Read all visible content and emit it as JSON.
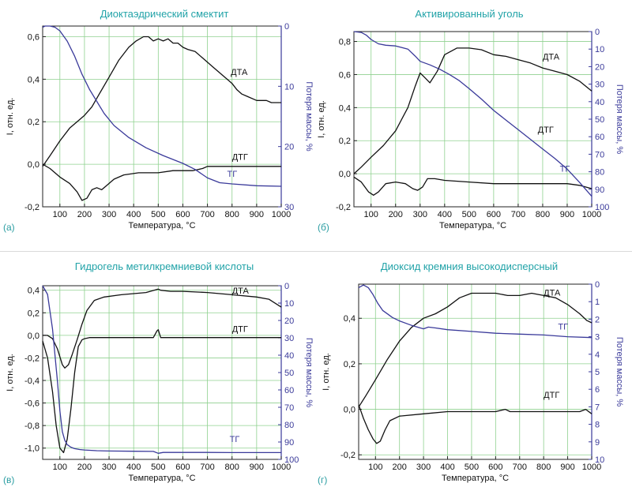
{
  "figure": {
    "panel_labels": [
      "(а)",
      "(б)",
      "(в)",
      "(г)"
    ]
  },
  "colors": {
    "title": "#22a3a8",
    "grid": "#8fd18f",
    "dta": "#111111",
    "dtg": "#111111",
    "tg": "#3a3a9a",
    "axis_right": "#3a3a9a"
  },
  "chart_data": [
    {
      "type": "line",
      "panel_label": "(а)",
      "title": "Диоктаэдрический смектит",
      "xlabel": "Температура, °С",
      "ylabel": "I, отн. ед.",
      "y2label": "Потеря массы, %",
      "xlim": [
        30,
        1000
      ],
      "ylim": [
        -0.2,
        0.65
      ],
      "y2lim": [
        0,
        30
      ],
      "x_ticks": [
        100,
        200,
        300,
        400,
        500,
        600,
        700,
        800,
        900,
        1000
      ],
      "y_ticks": [
        -0.2,
        0.0,
        0.2,
        0.4,
        0.6
      ],
      "y_tick_labels": [
        "-0,2",
        "0,0",
        "0,2",
        "0,4",
        "0,6"
      ],
      "y2_ticks": [
        0,
        10,
        20,
        30
      ],
      "y2_tick_labels": [
        "0",
        "10",
        "20",
        "30"
      ],
      "series": [
        {
          "name": "ДТА",
          "axis": "left",
          "label_at": [
            795,
            0.42
          ],
          "x": [
            30,
            60,
            100,
            140,
            170,
            200,
            230,
            260,
            300,
            340,
            380,
            410,
            440,
            460,
            480,
            500,
            520,
            540,
            560,
            580,
            600,
            620,
            650,
            680,
            720,
            760,
            790,
            800,
            820,
            840,
            860,
            900,
            940,
            960,
            1000
          ],
          "y": [
            -0.01,
            0.04,
            0.11,
            0.17,
            0.2,
            0.23,
            0.27,
            0.33,
            0.41,
            0.49,
            0.55,
            0.58,
            0.6,
            0.6,
            0.58,
            0.59,
            0.58,
            0.59,
            0.57,
            0.57,
            0.55,
            0.54,
            0.53,
            0.5,
            0.46,
            0.42,
            0.39,
            0.38,
            0.35,
            0.33,
            0.32,
            0.3,
            0.3,
            0.29,
            0.29
          ]
        },
        {
          "name": "ДТГ",
          "axis": "left",
          "label_at": [
            800,
            0.02
          ],
          "x": [
            30,
            60,
            100,
            140,
            170,
            190,
            210,
            230,
            250,
            270,
            290,
            320,
            360,
            420,
            500,
            560,
            600,
            640,
            680,
            700,
            750,
            800,
            900,
            1000
          ],
          "y": [
            0.0,
            -0.02,
            -0.06,
            -0.09,
            -0.13,
            -0.17,
            -0.16,
            -0.12,
            -0.11,
            -0.12,
            -0.1,
            -0.07,
            -0.05,
            -0.04,
            -0.04,
            -0.03,
            -0.03,
            -0.03,
            -0.02,
            -0.01,
            -0.01,
            -0.01,
            -0.01,
            -0.01
          ]
        },
        {
          "name": "ТГ",
          "axis": "right",
          "label_at": [
            780,
            25
          ],
          "x": [
            30,
            40,
            60,
            80,
            100,
            130,
            160,
            190,
            220,
            250,
            280,
            320,
            380,
            450,
            520,
            600,
            650,
            700,
            750,
            800,
            900,
            1000
          ],
          "y": [
            0.2,
            0.0,
            0.0,
            0.2,
            0.8,
            2.5,
            5.0,
            8.0,
            10.5,
            12.5,
            14.5,
            16.5,
            18.5,
            20.2,
            21.5,
            22.8,
            23.8,
            25.2,
            26.0,
            26.2,
            26.5,
            26.6
          ]
        }
      ]
    },
    {
      "type": "line",
      "panel_label": "(б)",
      "title": "Активированный уголь",
      "xlabel": "Температура, °С",
      "ylabel": "I, отн. ед.",
      "y2label": "Потеря массы, %",
      "xlim": [
        30,
        1000
      ],
      "ylim": [
        -0.2,
        0.86
      ],
      "y2lim": [
        0,
        100
      ],
      "x_ticks": [
        100,
        200,
        300,
        400,
        500,
        600,
        700,
        800,
        900,
        1000
      ],
      "y_ticks": [
        -0.2,
        0.0,
        0.2,
        0.4,
        0.6,
        0.8
      ],
      "y_tick_labels": [
        "-0,2",
        "0,0",
        "0,2",
        "0,4",
        "0,6",
        "0,8"
      ],
      "y2_ticks": [
        0,
        10,
        20,
        30,
        40,
        50,
        60,
        70,
        80,
        90,
        100
      ],
      "y2_tick_labels": [
        "0",
        "10",
        "20",
        "30",
        "40",
        "50",
        "60",
        "70",
        "80",
        "90",
        "100"
      ],
      "series": [
        {
          "name": "ДТА",
          "axis": "left",
          "label_at": [
            800,
            0.69
          ],
          "x": [
            30,
            60,
            100,
            150,
            200,
            250,
            280,
            300,
            320,
            340,
            370,
            400,
            450,
            500,
            550,
            600,
            650,
            700,
            750,
            800,
            850,
            900,
            950,
            1000
          ],
          "y": [
            0.0,
            0.04,
            0.1,
            0.17,
            0.26,
            0.4,
            0.53,
            0.61,
            0.58,
            0.55,
            0.62,
            0.72,
            0.76,
            0.76,
            0.75,
            0.72,
            0.71,
            0.69,
            0.67,
            0.64,
            0.62,
            0.6,
            0.56,
            0.5
          ]
        },
        {
          "name": "ДТГ",
          "axis": "left",
          "label_at": [
            780,
            0.25
          ],
          "x": [
            30,
            60,
            90,
            110,
            130,
            160,
            200,
            240,
            270,
            290,
            310,
            330,
            360,
            400,
            500,
            600,
            700,
            800,
            900,
            950,
            1000
          ],
          "y": [
            -0.02,
            -0.05,
            -0.11,
            -0.13,
            -0.11,
            -0.06,
            -0.05,
            -0.06,
            -0.09,
            -0.1,
            -0.08,
            -0.03,
            -0.03,
            -0.04,
            -0.05,
            -0.06,
            -0.06,
            -0.06,
            -0.06,
            -0.07,
            -0.09
          ]
        },
        {
          "name": "ТГ",
          "axis": "right",
          "label_at": [
            870,
            80
          ],
          "x": [
            30,
            60,
            80,
            100,
            130,
            160,
            200,
            250,
            280,
            300,
            340,
            380,
            420,
            460,
            500,
            550,
            600,
            650,
            700,
            750,
            800,
            850,
            900,
            950,
            1000
          ],
          "y": [
            0.0,
            0.5,
            2.0,
            4.5,
            7.0,
            7.8,
            8.2,
            10.0,
            14.0,
            17.0,
            19.0,
            21.5,
            24.5,
            28.0,
            32.5,
            38.5,
            45.0,
            50.5,
            56.0,
            61.5,
            67.0,
            72.5,
            78.5,
            86.0,
            94.0
          ]
        }
      ]
    },
    {
      "type": "line",
      "panel_label": "(в)",
      "title": "Гидрогель метилкремниевой кислоты",
      "xlabel": "Температура, °С",
      "ylabel": "I, отн. ед.",
      "y2label": "Потеря массы, %",
      "xlim": [
        30,
        1000
      ],
      "ylim": [
        -1.1,
        0.44
      ],
      "y2lim": [
        0,
        100
      ],
      "x_ticks": [
        100,
        200,
        300,
        400,
        500,
        600,
        700,
        800,
        900,
        1000
      ],
      "y_ticks": [
        -1.0,
        -0.8,
        -0.6,
        -0.4,
        -0.2,
        0.0,
        0.2,
        0.4
      ],
      "y_tick_labels": [
        "-1,0",
        "-0,8",
        "-0,6",
        "-0,4",
        "-0,2",
        "0,0",
        "0,2",
        "0,4"
      ],
      "y2_ticks": [
        0,
        10,
        20,
        30,
        40,
        50,
        60,
        70,
        80,
        90,
        100
      ],
      "y2_tick_labels": [
        "0",
        "10",
        "20",
        "30",
        "40",
        "50",
        "60",
        "70",
        "80",
        "90",
        "100"
      ],
      "series": [
        {
          "name": "ДТА",
          "axis": "left",
          "label_at": [
            800,
            0.37
          ],
          "x": [
            30,
            50,
            70,
            90,
            100,
            110,
            120,
            135,
            150,
            170,
            190,
            210,
            240,
            280,
            350,
            450,
            500,
            510,
            550,
            600,
            700,
            800,
            900,
            950,
            1000
          ],
          "y": [
            0.0,
            0.0,
            -0.03,
            -0.12,
            -0.19,
            -0.26,
            -0.29,
            -0.26,
            -0.17,
            -0.04,
            0.1,
            0.22,
            0.31,
            0.34,
            0.36,
            0.38,
            0.41,
            0.4,
            0.39,
            0.39,
            0.38,
            0.36,
            0.34,
            0.32,
            0.25
          ]
        },
        {
          "name": "ДТГ",
          "axis": "left",
          "label_at": [
            800,
            0.03
          ],
          "x": [
            30,
            50,
            70,
            85,
            100,
            115,
            130,
            145,
            160,
            175,
            190,
            200,
            220,
            300,
            400,
            480,
            495,
            500,
            510,
            600,
            700,
            800,
            900,
            1000
          ],
          "y": [
            -0.05,
            -0.2,
            -0.5,
            -0.8,
            -1.0,
            -1.04,
            -0.92,
            -0.65,
            -0.33,
            -0.1,
            -0.04,
            -0.03,
            -0.02,
            -0.02,
            -0.02,
            -0.02,
            0.04,
            0.05,
            -0.02,
            -0.02,
            -0.02,
            -0.02,
            -0.02,
            -0.02
          ]
        },
        {
          "name": "ТГ",
          "axis": "right",
          "label_at": [
            790,
            90
          ],
          "x": [
            30,
            50,
            70,
            90,
            100,
            110,
            120,
            130,
            145,
            160,
            180,
            200,
            250,
            300,
            400,
            480,
            500,
            520,
            600,
            700,
            800,
            900,
            1000
          ],
          "y": [
            0.0,
            5.0,
            25.0,
            55.0,
            72.0,
            84.0,
            89.0,
            91.5,
            93.0,
            93.8,
            94.3,
            94.6,
            95.0,
            95.2,
            95.3,
            95.4,
            96.5,
            96.0,
            96.0,
            96.0,
            96.1,
            96.1,
            96.1
          ]
        }
      ]
    },
    {
      "type": "line",
      "panel_label": "(г)",
      "title": "Диоксид кремния высокодисперсный",
      "xlabel": "Температура, °С",
      "ylabel": "I, отн. ед.",
      "y2label": "Потеря массы, %",
      "xlim": [
        30,
        1000
      ],
      "ylim": [
        -0.22,
        0.55
      ],
      "y2lim": [
        0,
        10
      ],
      "x_ticks": [
        100,
        200,
        300,
        400,
        500,
        600,
        700,
        800,
        900,
        1000
      ],
      "y_ticks": [
        -0.2,
        0.0,
        0.2,
        0.4
      ],
      "y_tick_labels": [
        "-0,2",
        "0,0",
        "0,2",
        "0,4"
      ],
      "y2_ticks": [
        0,
        1,
        2,
        3,
        4,
        5,
        6,
        7,
        8,
        9,
        10
      ],
      "y2_tick_labels": [
        "0",
        "1",
        "2",
        "3",
        "4",
        "5",
        "6",
        "7",
        "8",
        "9",
        "10"
      ],
      "series": [
        {
          "name": "ДТА",
          "axis": "left",
          "label_at": [
            800,
            0.5
          ],
          "x": [
            30,
            60,
            100,
            150,
            200,
            250,
            300,
            350,
            400,
            450,
            500,
            550,
            600,
            650,
            700,
            750,
            800,
            850,
            900,
            950,
            980,
            1000
          ],
          "y": [
            0.01,
            0.06,
            0.13,
            0.22,
            0.3,
            0.36,
            0.4,
            0.42,
            0.45,
            0.49,
            0.51,
            0.51,
            0.51,
            0.5,
            0.5,
            0.51,
            0.5,
            0.49,
            0.46,
            0.42,
            0.39,
            0.38
          ]
        },
        {
          "name": "ДТГ",
          "axis": "left",
          "label_at": [
            800,
            0.05
          ],
          "x": [
            30,
            50,
            70,
            90,
            105,
            120,
            140,
            160,
            200,
            300,
            400,
            500,
            600,
            640,
            660,
            700,
            800,
            900,
            950,
            975,
            1000
          ],
          "y": [
            0.02,
            -0.04,
            -0.09,
            -0.13,
            -0.15,
            -0.14,
            -0.09,
            -0.05,
            -0.03,
            -0.02,
            -0.01,
            -0.01,
            -0.01,
            0.0,
            -0.01,
            -0.01,
            -0.01,
            -0.01,
            -0.01,
            0.0,
            -0.02
          ]
        },
        {
          "name": "ТГ",
          "axis": "right",
          "label_at": [
            860,
            2.6
          ],
          "x": [
            30,
            50,
            70,
            90,
            110,
            130,
            150,
            170,
            200,
            250,
            300,
            320,
            350,
            400,
            500,
            600,
            700,
            800,
            900,
            1000
          ],
          "y": [
            0.2,
            0.05,
            0.2,
            0.6,
            1.1,
            1.5,
            1.7,
            1.9,
            2.1,
            2.35,
            2.55,
            2.45,
            2.5,
            2.6,
            2.7,
            2.8,
            2.85,
            2.9,
            3.0,
            3.05
          ]
        }
      ]
    }
  ]
}
